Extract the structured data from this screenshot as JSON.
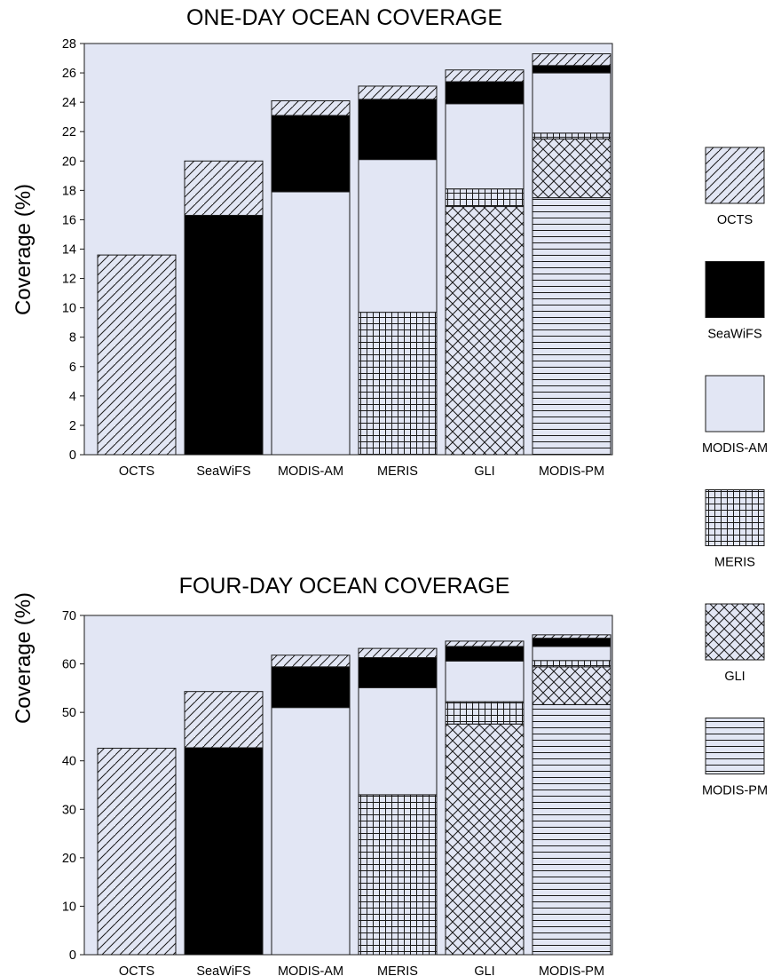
{
  "legend": [
    {
      "name": "OCTS",
      "pattern": "diag"
    },
    {
      "name": "SeaWiFS",
      "pattern": "solid"
    },
    {
      "name": "MODIS-AM",
      "pattern": "plain"
    },
    {
      "name": "MERIS",
      "pattern": "grid"
    },
    {
      "name": "GLI",
      "pattern": "cross"
    },
    {
      "name": "MODIS-PM",
      "pattern": "horiz"
    }
  ],
  "colors": {
    "plot_bg": "#e2e6f4",
    "bar_fill": "#e2e6f4",
    "solid": "#000000",
    "line": "#1a1a1a"
  },
  "chart_data": [
    {
      "type": "bar",
      "stacked": true,
      "title": "ONE-DAY OCEAN COVERAGE",
      "xlabel": "",
      "ylabel": "Coverage (%)",
      "ylim": [
        0,
        28
      ],
      "yticks": [
        0,
        2,
        4,
        6,
        8,
        10,
        12,
        14,
        16,
        18,
        20,
        22,
        24,
        26,
        28
      ],
      "grid": false,
      "categories": [
        "OCTS",
        "SeaWiFS",
        "MODIS-AM",
        "MERIS",
        "GLI",
        "MODIS-PM"
      ],
      "stacks": [
        [
          {
            "series": "OCTS",
            "value": 13.6
          }
        ],
        [
          {
            "series": "SeaWiFS",
            "value": 16.3
          },
          {
            "series": "OCTS",
            "value": 3.7
          }
        ],
        [
          {
            "series": "MODIS-AM",
            "value": 17.9
          },
          {
            "series": "SeaWiFS",
            "value": 5.2
          },
          {
            "series": "OCTS",
            "value": 1.0
          }
        ],
        [
          {
            "series": "MERIS",
            "value": 9.7
          },
          {
            "series": "MODIS-AM",
            "value": 10.4
          },
          {
            "series": "SeaWiFS",
            "value": 4.1
          },
          {
            "series": "OCTS",
            "value": 0.9
          }
        ],
        [
          {
            "series": "GLI",
            "value": 16.9
          },
          {
            "series": "MERIS",
            "value": 1.2
          },
          {
            "series": "MODIS-AM",
            "value": 5.8
          },
          {
            "series": "SeaWiFS",
            "value": 1.5
          },
          {
            "series": "OCTS",
            "value": 0.8
          }
        ],
        [
          {
            "series": "MODIS-PM",
            "value": 17.5
          },
          {
            "series": "GLI",
            "value": 4.0
          },
          {
            "series": "MERIS",
            "value": 0.4
          },
          {
            "series": "MODIS-AM",
            "value": 4.1
          },
          {
            "series": "SeaWiFS",
            "value": 0.5
          },
          {
            "series": "OCTS",
            "value": 0.8
          }
        ]
      ]
    },
    {
      "type": "bar",
      "stacked": true,
      "title": "FOUR-DAY OCEAN COVERAGE",
      "xlabel": "",
      "ylabel": "Coverage (%)",
      "ylim": [
        0,
        70
      ],
      "yticks": [
        0,
        10,
        20,
        30,
        40,
        50,
        60,
        70
      ],
      "grid": false,
      "categories": [
        "OCTS",
        "SeaWiFS",
        "MODIS-AM",
        "MERIS",
        "GLI",
        "MODIS-PM"
      ],
      "stacks": [
        [
          {
            "series": "OCTS",
            "value": 42.6
          }
        ],
        [
          {
            "series": "SeaWiFS",
            "value": 42.7
          },
          {
            "series": "OCTS",
            "value": 11.6
          }
        ],
        [
          {
            "series": "MODIS-AM",
            "value": 51.0
          },
          {
            "series": "SeaWiFS",
            "value": 8.4
          },
          {
            "series": "OCTS",
            "value": 2.4
          }
        ],
        [
          {
            "series": "MERIS",
            "value": 33.0
          },
          {
            "series": "MODIS-AM",
            "value": 22.1
          },
          {
            "series": "SeaWiFS",
            "value": 6.2
          },
          {
            "series": "OCTS",
            "value": 1.9
          }
        ],
        [
          {
            "series": "GLI",
            "value": 47.6
          },
          {
            "series": "MERIS",
            "value": 4.6
          },
          {
            "series": "MODIS-AM",
            "value": 8.4
          },
          {
            "series": "SeaWiFS",
            "value": 3.0
          },
          {
            "series": "OCTS",
            "value": 1.1
          }
        ],
        [
          {
            "series": "MODIS-PM",
            "value": 51.6
          },
          {
            "series": "GLI",
            "value": 7.8
          },
          {
            "series": "MERIS",
            "value": 1.3
          },
          {
            "series": "MODIS-AM",
            "value": 2.9
          },
          {
            "series": "SeaWiFS",
            "value": 1.7
          },
          {
            "series": "OCTS",
            "value": 0.7
          }
        ]
      ]
    }
  ]
}
